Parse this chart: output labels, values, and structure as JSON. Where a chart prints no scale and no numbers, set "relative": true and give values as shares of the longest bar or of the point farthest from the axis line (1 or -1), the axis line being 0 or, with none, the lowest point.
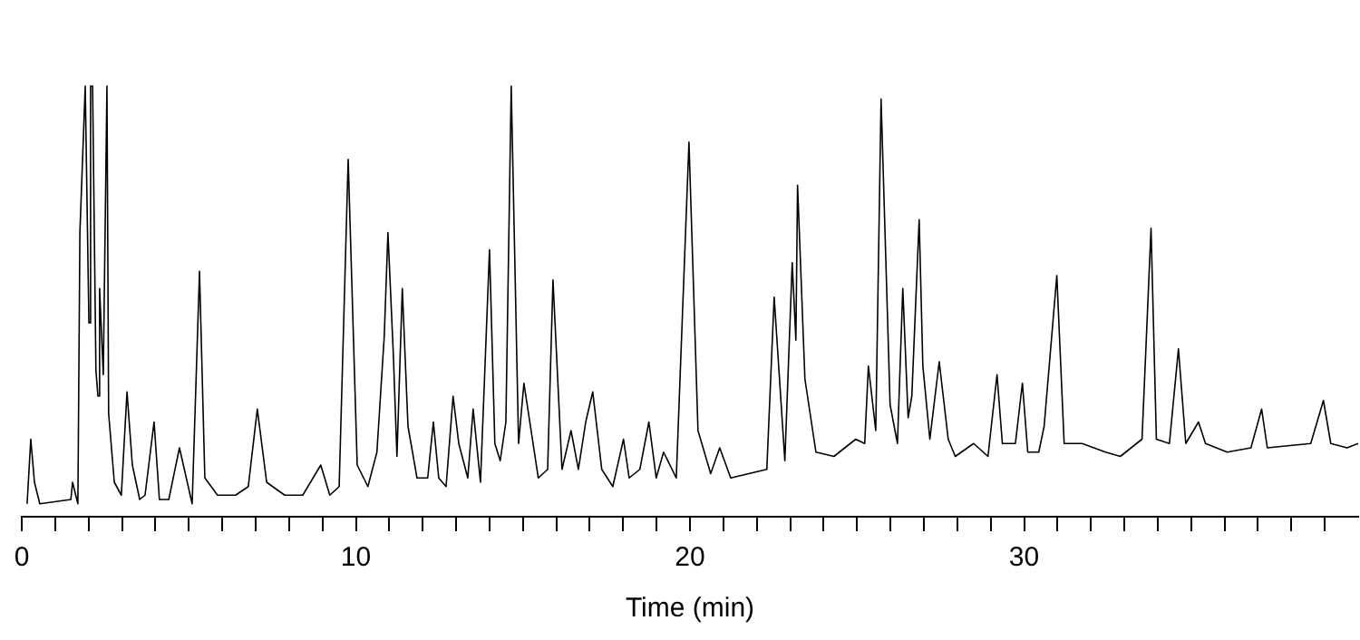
{
  "chart_data": {
    "type": "line",
    "xlabel": "Time (min)",
    "relative": true,
    "grid": false,
    "legend": false,
    "marker": "none",
    "line_style": "solid",
    "xlim": [
      0,
      40
    ],
    "xticks": [
      0,
      {
        "value": 1,
        "label": null
      },
      {
        "value": 2,
        "label": null
      },
      {
        "value": 3,
        "label": null
      },
      {
        "value": 4,
        "label": null
      },
      {
        "value": 5,
        "label": null
      },
      {
        "value": 6,
        "label": null
      },
      {
        "value": 7,
        "label": null
      },
      {
        "value": 8,
        "label": null
      },
      {
        "value": 9,
        "label": null
      },
      10,
      {
        "value": 11,
        "label": null
      },
      {
        "value": 12,
        "label": null
      },
      {
        "value": 13,
        "label": null
      },
      {
        "value": 14,
        "label": null
      },
      {
        "value": 15,
        "label": null
      },
      {
        "value": 16,
        "label": null
      },
      {
        "value": 17,
        "label": null
      },
      {
        "value": 18,
        "label": null
      },
      {
        "value": 19,
        "label": null
      },
      20,
      {
        "value": 21,
        "label": null
      },
      {
        "value": 22,
        "label": null
      },
      {
        "value": 23,
        "label": null
      },
      {
        "value": 24,
        "label": null
      },
      {
        "value": 25,
        "label": null
      },
      {
        "value": 26,
        "label": null
      },
      {
        "value": 27,
        "label": null
      },
      {
        "value": 28,
        "label": null
      },
      {
        "value": 29,
        "label": null
      },
      30,
      {
        "value": 31,
        "label": null
      },
      {
        "value": 32,
        "label": null
      },
      {
        "value": 33,
        "label": null
      },
      {
        "value": 34,
        "label": null
      },
      {
        "value": 35,
        "label": null
      },
      {
        "value": 36,
        "label": null
      },
      {
        "value": 37,
        "label": null
      },
      {
        "value": 38,
        "label": null
      },
      {
        "value": 39,
        "label": null
      }
    ],
    "series": [
      {
        "color": "#000000",
        "x": [
          0.16,
          0.27,
          0.38,
          0.54,
          1.47,
          1.52,
          1.68,
          1.74,
          1.9,
          2.01,
          2.06,
          2.12,
          2.22,
          2.28,
          2.33,
          2.44,
          2.55,
          2.6,
          2.77,
          2.98,
          3.15,
          3.31,
          3.53,
          3.69,
          3.96,
          4.12,
          4.4,
          4.72,
          5.1,
          5.32,
          5.48,
          5.86,
          6.4,
          6.78,
          7.05,
          7.33,
          7.87,
          8.41,
          8.95,
          9.22,
          9.5,
          9.77,
          10.04,
          10.36,
          10.63,
          10.85,
          10.96,
          11.12,
          11.23,
          11.39,
          11.56,
          11.83,
          12.15,
          12.32,
          12.48,
          12.7,
          12.91,
          13.08,
          13.35,
          13.51,
          13.73,
          14.0,
          14.16,
          14.32,
          14.49,
          14.65,
          14.87,
          15.03,
          15.46,
          15.74,
          15.9,
          16.17,
          16.44,
          16.66,
          16.88,
          17.09,
          17.36,
          17.69,
          18.01,
          18.18,
          18.5,
          18.77,
          18.99,
          19.21,
          19.59,
          19.97,
          20.24,
          20.62,
          20.89,
          21.22,
          22.3,
          22.52,
          22.84,
          23.06,
          23.17,
          23.22,
          23.44,
          23.77,
          24.31,
          24.96,
          25.23,
          25.34,
          25.56,
          25.72,
          25.99,
          26.21,
          26.37,
          26.53,
          26.64,
          26.86,
          26.97,
          27.18,
          27.46,
          27.73,
          27.94,
          28.49,
          28.92,
          29.19,
          29.35,
          29.74,
          29.95,
          30.11,
          30.44,
          30.6,
          30.98,
          31.2,
          31.74,
          32.44,
          32.88,
          33.53,
          33.8,
          33.96,
          34.35,
          34.62,
          34.84,
          35.22,
          35.43,
          36.08,
          36.79,
          37.11,
          37.28,
          38.58,
          38.96,
          39.18,
          39.67,
          40.0
        ],
        "values": [
          0.03,
          0.18,
          0.08,
          0.03,
          0.04,
          0.08,
          0.03,
          0.66,
          1,
          0.45,
          1,
          1,
          0.34,
          0.28,
          0.53,
          0.33,
          1,
          0.24,
          0.08,
          0.05,
          0.29,
          0.12,
          0.04,
          0.05,
          0.22,
          0.04,
          0.04,
          0.16,
          0.03,
          0.57,
          0.09,
          0.05,
          0.05,
          0.07,
          0.25,
          0.08,
          0.05,
          0.05,
          0.12,
          0.05,
          0.07,
          0.83,
          0.12,
          0.07,
          0.15,
          0.42,
          0.66,
          0.38,
          0.14,
          0.53,
          0.21,
          0.09,
          0.09,
          0.22,
          0.09,
          0.07,
          0.28,
          0.17,
          0.09,
          0.25,
          0.08,
          0.62,
          0.17,
          0.13,
          0.22,
          1,
          0.17,
          0.31,
          0.09,
          0.11,
          0.55,
          0.11,
          0.2,
          0.11,
          0.22,
          0.29,
          0.11,
          0.07,
          0.18,
          0.09,
          0.11,
          0.22,
          0.09,
          0.15,
          0.09,
          0.87,
          0.2,
          0.1,
          0.16,
          0.09,
          0.11,
          0.51,
          0.13,
          0.59,
          0.41,
          0.77,
          0.32,
          0.15,
          0.14,
          0.18,
          0.17,
          0.35,
          0.2,
          0.97,
          0.26,
          0.17,
          0.53,
          0.23,
          0.28,
          0.69,
          0.35,
          0.18,
          0.36,
          0.18,
          0.14,
          0.17,
          0.14,
          0.33,
          0.17,
          0.17,
          0.31,
          0.15,
          0.15,
          0.21,
          0.56,
          0.17,
          0.17,
          0.15,
          0.14,
          0.18,
          0.67,
          0.18,
          0.17,
          0.39,
          0.17,
          0.22,
          0.17,
          0.15,
          0.16,
          0.25,
          0.16,
          0.17,
          0.27,
          0.17,
          0.16,
          0.17
        ]
      }
    ]
  }
}
